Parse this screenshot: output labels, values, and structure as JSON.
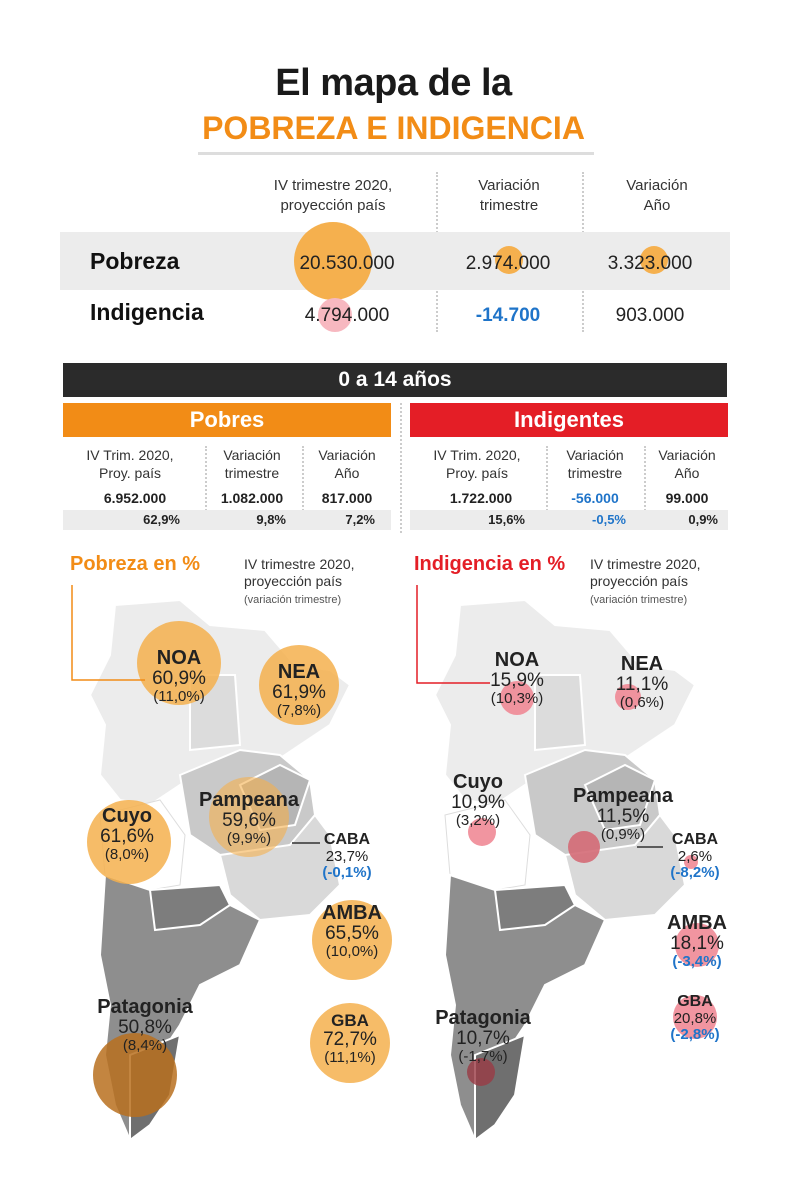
{
  "title": {
    "line1": "El mapa de la",
    "line2": "POBREZA E INDIGENCIA"
  },
  "summary": {
    "col_headers": [
      "IV trimestre 2020,",
      "proyección país",
      "Variación",
      "trimestre",
      "Variación",
      "Año"
    ],
    "rows": [
      {
        "label": "Pobreza",
        "values": [
          "20.530.000",
          "2.974.000",
          "3.323.000"
        ]
      },
      {
        "label": "Indigencia",
        "values": [
          "4.794.000",
          "-14.700",
          "903.000"
        ]
      }
    ]
  },
  "age_bar": "0 a 14 años",
  "pobres": {
    "header": "Pobres",
    "col_headers": [
      [
        "IV Trim. 2020,",
        "Proy. país"
      ],
      [
        "Variación",
        "trimestre"
      ],
      [
        "Variación",
        "Año"
      ]
    ],
    "values": [
      "6.952.000",
      "1.082.000",
      "817.000"
    ],
    "percents": [
      "62,9%",
      "9,8%",
      "7,2%"
    ]
  },
  "indigentes": {
    "header": "Indigentes",
    "col_headers": [
      [
        "IV Trim. 2020,",
        "Proy. país"
      ],
      [
        "Variación",
        "trimestre"
      ],
      [
        "Variación",
        "Año"
      ]
    ],
    "values": [
      "1.722.000",
      "-56.000",
      "99.000"
    ],
    "percents": [
      "15,6%",
      "-0,5%",
      "0,9%"
    ]
  },
  "map_left": {
    "title": "Pobreza en %",
    "sub1": "IV trimestre 2020,",
    "sub2": "proyección país",
    "sub3": "(variación trimestre)",
    "regions": {
      "noa": {
        "name": "NOA",
        "value": "60,9%",
        "var": "(11,0%)"
      },
      "nea": {
        "name": "NEA",
        "value": "61,9%",
        "var": "(7,8%)"
      },
      "cuyo": {
        "name": "Cuyo",
        "value": "61,6%",
        "var": "(8,0%)"
      },
      "pampeana": {
        "name": "Pampeana",
        "value": "59,6%",
        "var": "(9,9%)"
      },
      "caba": {
        "name": "CABA",
        "value": "23,7%",
        "var": "(-0,1%)"
      },
      "amba": {
        "name": "AMBA",
        "value": "65,5%",
        "var": "(10,0%)"
      },
      "patagonia": {
        "name": "Patagonia",
        "value": "50,8%",
        "var": "(8,4%)"
      },
      "gba": {
        "name": "GBA",
        "value": "72,7%",
        "var": "(11,1%)"
      }
    }
  },
  "map_right": {
    "title": "Indigencia en %",
    "sub1": "IV trimestre 2020,",
    "sub2": "proyección país",
    "sub3": "(variación trimestre)",
    "regions": {
      "noa": {
        "name": "NOA",
        "value": "15,9%",
        "var": "(10,3%)"
      },
      "nea": {
        "name": "NEA",
        "value": "11,1%",
        "var": "(0,6%)"
      },
      "cuyo": {
        "name": "Cuyo",
        "value": "10,9%",
        "var": "(3,2%)"
      },
      "pampeana": {
        "name": "Pampeana",
        "value": "11,5%",
        "var": "(0,9%)"
      },
      "caba": {
        "name": "CABA",
        "value": "2,6%",
        "var": "(-8,2%)"
      },
      "amba": {
        "name": "AMBA",
        "value": "18,1%",
        "var": "(-3,4%)"
      },
      "gba": {
        "name": "GBA",
        "value": "20,8%",
        "var": "(-2,8%)"
      },
      "patagonia": {
        "name": "Patagonia",
        "value": "10,7%",
        "var": "(-1,7%)"
      }
    }
  },
  "colors": {
    "orange": "#f28c16",
    "red": "#e41e26",
    "dark": "#2b2b2b",
    "blue": "#1f74c9",
    "bubble_orange": "#f5b04e",
    "bubble_pink": "#f08a96"
  }
}
